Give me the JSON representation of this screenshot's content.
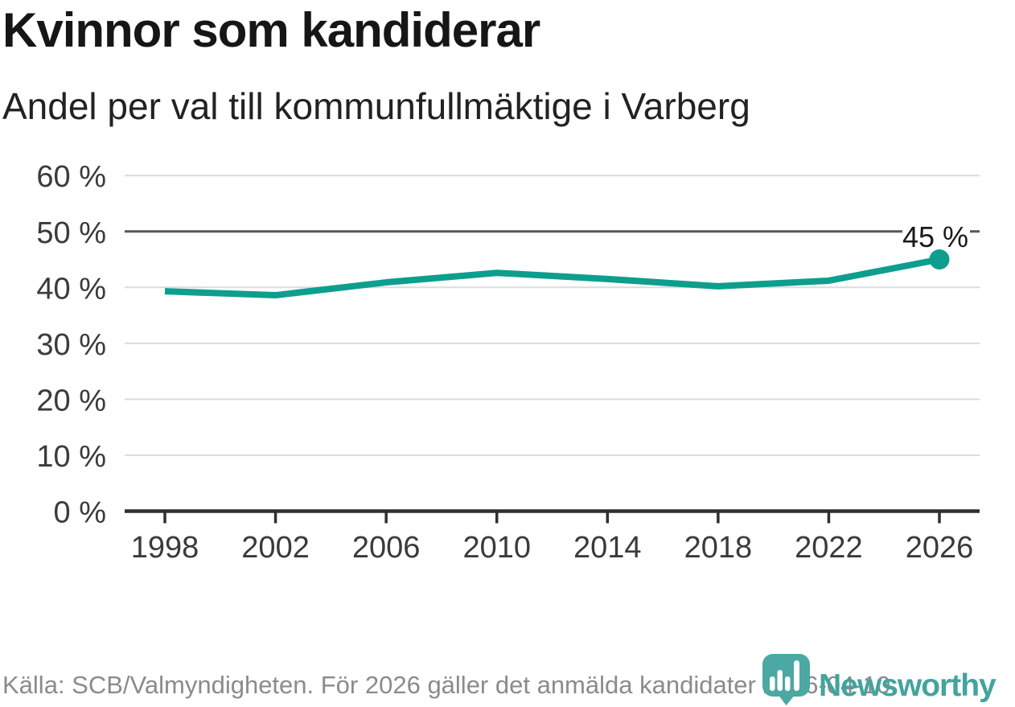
{
  "header": {
    "title": "Kvinnor som kandiderar",
    "subtitle": "Andel per val till kommunfullmäktige i Varberg"
  },
  "footer": {
    "source": "Källa: SCB/Valmyndigheten. För 2026 gäller det anmälda kandidater 2026-04-10.",
    "brand": "Newsworthy"
  },
  "colors": {
    "line": "#0d9e8e",
    "axis": "#2f2f33",
    "grid": "#dcdcdc",
    "reference": "#55565e",
    "tick_text": "#3a3a3a",
    "end_label_text": "#1a1a1a",
    "brand_teal": "#43a49d",
    "logo_teal": "#4ba8a2",
    "source_text": "#8b8b8b"
  },
  "chart_data": {
    "type": "line",
    "title": "Kvinnor som kandiderar",
    "subtitle": "Andel per val till kommunfullmäktige i Varberg",
    "x": [
      1998,
      2002,
      2006,
      2010,
      2014,
      2018,
      2022,
      2026
    ],
    "x_tick_labels": [
      "1998",
      "2002",
      "2006",
      "2010",
      "2014",
      "2018",
      "2022",
      "2026"
    ],
    "series": [
      {
        "name": "Kvinnor som kandiderar",
        "values": [
          39.3,
          38.6,
          40.9,
          42.6,
          41.5,
          40.2,
          41.2,
          45.0
        ]
      }
    ],
    "ylim": [
      0,
      60
    ],
    "y_ticks": [
      0,
      10,
      20,
      30,
      40,
      50,
      60
    ],
    "y_tick_suffix": " %",
    "reference_line": 50,
    "grid": true,
    "legend": "none",
    "end_label": "45 %"
  }
}
